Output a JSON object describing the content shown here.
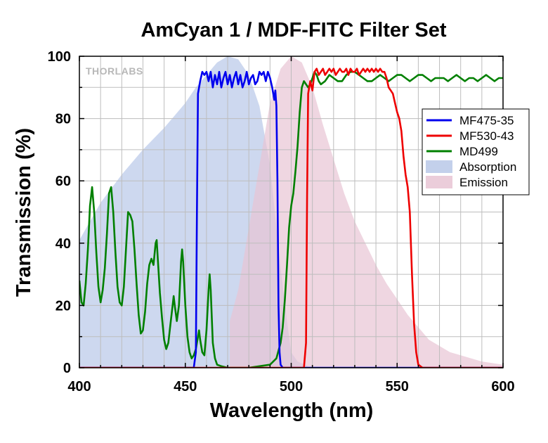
{
  "chart_data": {
    "type": "line",
    "title": "AmCyan 1 / MDF-FITC Filter Set",
    "xlabel": "Wavelength (nm)",
    "ylabel": "Transmission (%)",
    "xlim": [
      400,
      600
    ],
    "ylim": [
      0,
      100
    ],
    "xticks": [
      400,
      450,
      500,
      550,
      600
    ],
    "yticks": [
      0,
      20,
      40,
      60,
      80,
      100
    ],
    "grid": true,
    "legend_position": "right",
    "watermark": "THORLABS",
    "series": [
      {
        "name": "Absorption",
        "kind": "area",
        "color": "#b8c8e8",
        "points": [
          [
            400,
            41
          ],
          [
            410,
            53
          ],
          [
            420,
            62
          ],
          [
            430,
            70
          ],
          [
            440,
            77
          ],
          [
            445,
            81
          ],
          [
            450,
            85
          ],
          [
            455,
            90
          ],
          [
            460,
            94
          ],
          [
            465,
            98
          ],
          [
            470,
            100
          ],
          [
            475,
            99
          ],
          [
            480,
            94
          ],
          [
            485,
            84
          ],
          [
            490,
            65
          ],
          [
            495,
            32
          ],
          [
            498,
            15
          ],
          [
            500,
            5
          ],
          [
            503,
            2
          ],
          [
            508,
            0.5
          ],
          [
            515,
            0
          ]
        ]
      },
      {
        "name": "Emission",
        "kind": "area",
        "color": "#e8c4d4",
        "points": [
          [
            471,
            0
          ],
          [
            471,
            15
          ],
          [
            475,
            25
          ],
          [
            480,
            45
          ],
          [
            485,
            65
          ],
          [
            490,
            85
          ],
          [
            495,
            96
          ],
          [
            500,
            100
          ],
          [
            505,
            98
          ],
          [
            510,
            90
          ],
          [
            515,
            78
          ],
          [
            520,
            67
          ],
          [
            525,
            56
          ],
          [
            530,
            47
          ],
          [
            535,
            40
          ],
          [
            540,
            33
          ],
          [
            545,
            27
          ],
          [
            550,
            22
          ],
          [
            555,
            17
          ],
          [
            560,
            13
          ],
          [
            565,
            9
          ],
          [
            570,
            7
          ],
          [
            575,
            5
          ],
          [
            580,
            4
          ],
          [
            590,
            2
          ],
          [
            600,
            1
          ]
        ]
      },
      {
        "name": "MF475-35",
        "kind": "line",
        "color": "#0000ee",
        "points": [
          [
            400,
            0
          ],
          [
            454,
            0
          ],
          [
            455,
            5
          ],
          [
            455.5,
            50
          ],
          [
            456,
            88
          ],
          [
            457,
            92
          ],
          [
            458,
            95
          ],
          [
            459,
            94
          ],
          [
            460,
            95
          ],
          [
            461,
            92
          ],
          [
            462,
            95
          ],
          [
            463,
            90
          ],
          [
            464,
            94
          ],
          [
            465,
            91
          ],
          [
            466,
            95
          ],
          [
            467,
            90
          ],
          [
            468,
            93
          ],
          [
            469,
            95
          ],
          [
            470,
            91
          ],
          [
            471,
            94
          ],
          [
            472,
            90
          ],
          [
            473,
            93
          ],
          [
            474,
            95
          ],
          [
            475,
            91
          ],
          [
            476,
            94
          ],
          [
            477,
            90
          ],
          [
            478,
            92
          ],
          [
            479,
            95
          ],
          [
            480,
            91
          ],
          [
            481,
            93
          ],
          [
            482,
            94
          ],
          [
            483,
            91
          ],
          [
            484,
            92
          ],
          [
            485,
            95
          ],
          [
            486,
            94
          ],
          [
            487,
            95
          ],
          [
            488,
            92
          ],
          [
            489,
            95
          ],
          [
            490,
            93
          ],
          [
            491,
            90
          ],
          [
            492,
            86
          ],
          [
            492.5,
            89
          ],
          [
            493,
            84
          ],
          [
            493.5,
            60
          ],
          [
            494,
            20
          ],
          [
            494.5,
            5
          ],
          [
            495,
            1
          ],
          [
            496,
            0
          ],
          [
            600,
            0
          ]
        ]
      },
      {
        "name": "MF530-43",
        "kind": "line",
        "color": "#ee0000",
        "points": [
          [
            400,
            0
          ],
          [
            506,
            0
          ],
          [
            507,
            8
          ],
          [
            507.5,
            55
          ],
          [
            508,
            88
          ],
          [
            509,
            92
          ],
          [
            510,
            89
          ],
          [
            511,
            95
          ],
          [
            512,
            96
          ],
          [
            513,
            94
          ],
          [
            514,
            95
          ],
          [
            515,
            96
          ],
          [
            516,
            94
          ],
          [
            517,
            95
          ],
          [
            518,
            96
          ],
          [
            519,
            95
          ],
          [
            520,
            96
          ],
          [
            521,
            94
          ],
          [
            522,
            95
          ],
          [
            523,
            96
          ],
          [
            524,
            95
          ],
          [
            525,
            95
          ],
          [
            526,
            96
          ],
          [
            527,
            94
          ],
          [
            528,
            96
          ],
          [
            529,
            95
          ],
          [
            530,
            95
          ],
          [
            531,
            96
          ],
          [
            532,
            94
          ],
          [
            533,
            95
          ],
          [
            534,
            96
          ],
          [
            535,
            95
          ],
          [
            536,
            96
          ],
          [
            537,
            95
          ],
          [
            538,
            96
          ],
          [
            539,
            95
          ],
          [
            540,
            96
          ],
          [
            541,
            95
          ],
          [
            542,
            96
          ],
          [
            543,
            95
          ],
          [
            544,
            95
          ],
          [
            545,
            93
          ],
          [
            546,
            90
          ],
          [
            547,
            89
          ],
          [
            548,
            88
          ],
          [
            549,
            85
          ],
          [
            550,
            82
          ],
          [
            551,
            80
          ],
          [
            552,
            76
          ],
          [
            553,
            68
          ],
          [
            554,
            62
          ],
          [
            555,
            58
          ],
          [
            556,
            50
          ],
          [
            557,
            30
          ],
          [
            558,
            14
          ],
          [
            559,
            5
          ],
          [
            560,
            1
          ],
          [
            562,
            0
          ],
          [
            600,
            0
          ]
        ]
      },
      {
        "name": "MD499",
        "kind": "line",
        "color": "#008000",
        "points": [
          [
            400,
            28
          ],
          [
            401,
            21
          ],
          [
            402,
            20
          ],
          [
            403,
            27
          ],
          [
            404,
            38
          ],
          [
            405,
            52
          ],
          [
            406,
            58
          ],
          [
            407,
            50
          ],
          [
            408,
            37
          ],
          [
            409,
            26
          ],
          [
            410,
            21
          ],
          [
            411,
            25
          ],
          [
            412,
            32
          ],
          [
            413,
            43
          ],
          [
            414,
            56
          ],
          [
            415,
            58
          ],
          [
            416,
            50
          ],
          [
            417,
            37
          ],
          [
            418,
            26
          ],
          [
            419,
            21
          ],
          [
            420,
            20
          ],
          [
            421,
            26
          ],
          [
            422,
            38
          ],
          [
            423,
            50
          ],
          [
            424,
            49
          ],
          [
            425,
            47
          ],
          [
            426,
            38
          ],
          [
            427,
            27
          ],
          [
            428,
            17
          ],
          [
            429,
            11
          ],
          [
            430,
            12
          ],
          [
            431,
            18
          ],
          [
            432,
            27
          ],
          [
            433,
            33
          ],
          [
            434,
            35
          ],
          [
            435,
            33
          ],
          [
            436,
            40
          ],
          [
            436.5,
            41
          ],
          [
            437,
            35
          ],
          [
            438,
            24
          ],
          [
            439,
            16
          ],
          [
            440,
            9
          ],
          [
            441,
            6
          ],
          [
            442,
            8
          ],
          [
            443,
            14
          ],
          [
            444,
            20
          ],
          [
            444.5,
            23
          ],
          [
            445,
            20
          ],
          [
            446,
            15
          ],
          [
            447,
            20
          ],
          [
            448,
            34
          ],
          [
            448.5,
            38
          ],
          [
            449,
            34
          ],
          [
            450,
            20
          ],
          [
            451,
            10
          ],
          [
            452,
            5
          ],
          [
            453,
            3
          ],
          [
            454,
            4
          ],
          [
            455,
            6
          ],
          [
            456,
            10
          ],
          [
            456.5,
            12
          ],
          [
            457,
            9
          ],
          [
            458,
            5
          ],
          [
            459,
            4
          ],
          [
            460,
            12
          ],
          [
            461,
            25
          ],
          [
            461.5,
            30
          ],
          [
            462,
            25
          ],
          [
            463,
            8
          ],
          [
            464,
            3
          ],
          [
            465,
            1
          ],
          [
            467,
            0.5
          ],
          [
            470,
            0
          ],
          [
            480,
            0
          ],
          [
            485,
            0.5
          ],
          [
            490,
            1
          ],
          [
            493,
            3
          ],
          [
            495,
            8
          ],
          [
            496,
            13
          ],
          [
            497,
            22
          ],
          [
            498,
            33
          ],
          [
            499,
            45
          ],
          [
            500,
            52
          ],
          [
            501,
            56
          ],
          [
            502,
            63
          ],
          [
            503,
            71
          ],
          [
            504,
            82
          ],
          [
            505,
            90
          ],
          [
            506,
            92
          ],
          [
            507,
            91
          ],
          [
            508,
            90
          ],
          [
            509,
            91
          ],
          [
            510,
            93
          ],
          [
            511,
            95
          ],
          [
            512,
            94
          ],
          [
            513,
            92
          ],
          [
            514,
            91
          ],
          [
            516,
            92
          ],
          [
            518,
            94
          ],
          [
            520,
            93
          ],
          [
            522,
            92
          ],
          [
            524,
            92
          ],
          [
            526,
            94
          ],
          [
            528,
            95
          ],
          [
            530,
            95
          ],
          [
            532,
            94
          ],
          [
            534,
            93
          ],
          [
            536,
            92
          ],
          [
            538,
            92
          ],
          [
            540,
            93
          ],
          [
            542,
            94
          ],
          [
            544,
            93
          ],
          [
            546,
            92
          ],
          [
            548,
            93
          ],
          [
            550,
            94
          ],
          [
            552,
            94
          ],
          [
            554,
            93
          ],
          [
            556,
            92
          ],
          [
            558,
            93
          ],
          [
            560,
            94
          ],
          [
            562,
            94
          ],
          [
            564,
            93
          ],
          [
            566,
            92
          ],
          [
            568,
            93
          ],
          [
            570,
            93
          ],
          [
            572,
            93
          ],
          [
            574,
            92
          ],
          [
            576,
            93
          ],
          [
            578,
            94
          ],
          [
            580,
            93
          ],
          [
            582,
            92
          ],
          [
            584,
            93
          ],
          [
            586,
            93
          ],
          [
            588,
            92
          ],
          [
            590,
            93
          ],
          [
            592,
            94
          ],
          [
            594,
            93
          ],
          [
            596,
            92
          ],
          [
            598,
            93
          ],
          [
            600,
            93
          ]
        ]
      }
    ],
    "legend": [
      "MF475-35",
      "MF530-43",
      "MD499",
      "Absorption",
      "Emission"
    ]
  }
}
